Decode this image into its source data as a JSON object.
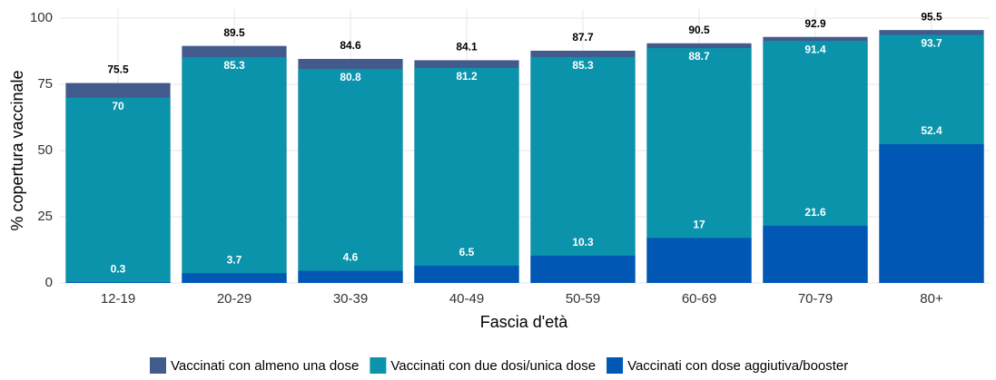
{
  "chart_data": {
    "type": "overlay_bar",
    "x_label": "Fascia d'età",
    "y_label": "% copertura vaccinale",
    "categories": [
      "12-19",
      "20-29",
      "30-39",
      "40-49",
      "50-59",
      "60-69",
      "70-79",
      "80+"
    ],
    "series": [
      {
        "name": "Vaccinati con almeno una dose",
        "color": "#435a8c",
        "values": [
          75.5,
          89.5,
          84.6,
          84.1,
          87.7,
          90.5,
          92.9,
          95.5
        ]
      },
      {
        "name": "Vaccinati con due dosi/unica dose",
        "color": "#0a93ab",
        "values": [
          70,
          85.3,
          80.8,
          81.2,
          85.3,
          88.7,
          91.4,
          93.7
        ]
      },
      {
        "name": "Vaccinati con dose aggiutiva/booster",
        "color": "#0058b4",
        "values": [
          0.3,
          3.7,
          4.6,
          6.5,
          10.3,
          17,
          21.6,
          52.4
        ]
      }
    ],
    "ylim": [
      0,
      100
    ],
    "yticks": [
      0,
      25,
      50,
      75,
      100
    ],
    "grid": true,
    "legend": "bottom"
  }
}
